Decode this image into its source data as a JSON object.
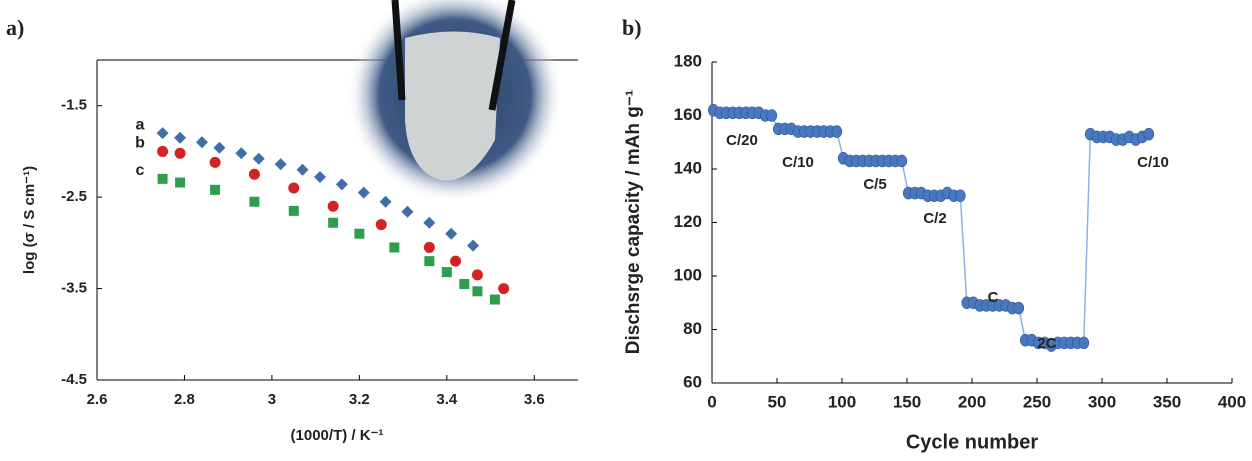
{
  "chart_data": [
    {
      "type": "scatter",
      "title": "a)",
      "xlabel": "(1000/T)  / K⁻¹",
      "ylabel": "log (σ / S cm⁻¹)",
      "xlim": [
        2.6,
        3.7
      ],
      "xticks": [
        2.6,
        2.8,
        3.0,
        3.2,
        3.4,
        3.6
      ],
      "ylim": [
        -4.5,
        -1
      ],
      "yticks": [
        -4.5,
        -3.5,
        -2.5,
        -1.5
      ],
      "series": [
        {
          "name": "a",
          "color": "#3f6fa8",
          "marker": "diamond",
          "x": [
            2.75,
            2.79,
            2.84,
            2.88,
            2.93,
            2.97,
            3.02,
            3.07,
            3.11,
            3.16,
            3.21,
            3.26,
            3.31,
            3.36,
            3.41,
            3.46
          ],
          "values": [
            -1.8,
            -1.85,
            -1.9,
            -1.96,
            -2.02,
            -2.08,
            -2.14,
            -2.2,
            -2.28,
            -2.36,
            -2.45,
            -2.55,
            -2.66,
            -2.78,
            -2.9,
            -3.03
          ]
        },
        {
          "name": "b",
          "color": "#d42222",
          "marker": "circle",
          "x": [
            2.75,
            2.79,
            2.87,
            2.96,
            3.05,
            3.14,
            3.25,
            3.36,
            3.42,
            3.47,
            3.53
          ],
          "values": [
            -2.0,
            -2.02,
            -2.12,
            -2.25,
            -2.4,
            -2.6,
            -2.8,
            -3.05,
            -3.2,
            -3.35,
            -3.5
          ]
        },
        {
          "name": "c",
          "color": "#2f9e4c",
          "marker": "square",
          "x": [
            2.75,
            2.79,
            2.87,
            2.96,
            3.05,
            3.14,
            3.2,
            3.28,
            3.36,
            3.4,
            3.44,
            3.47,
            3.51
          ],
          "values": [
            -2.3,
            -2.34,
            -2.42,
            -2.55,
            -2.65,
            -2.78,
            -2.9,
            -3.05,
            -3.2,
            -3.32,
            -3.45,
            -3.53,
            -3.62
          ]
        }
      ]
    },
    {
      "type": "line",
      "title": "b)",
      "xlabel": "Cycle number",
      "ylabel": "Dischsrge capacity / mAh g⁻¹",
      "xlim": [
        0,
        400
      ],
      "xticks": [
        0,
        50,
        100,
        150,
        200,
        250,
        300,
        350,
        400
      ],
      "ylim": [
        60,
        180
      ],
      "yticks": [
        60,
        80,
        100,
        120,
        140,
        160,
        180
      ],
      "color": "#4a78c0",
      "line_color": "#8fb2de",
      "x": [
        1,
        6,
        11,
        16,
        21,
        26,
        31,
        36,
        41,
        46,
        51,
        56,
        61,
        66,
        71,
        76,
        81,
        86,
        91,
        96,
        101,
        106,
        111,
        116,
        121,
        126,
        131,
        136,
        141,
        146,
        151,
        156,
        161,
        166,
        171,
        176,
        181,
        186,
        191,
        196,
        201,
        206,
        211,
        216,
        221,
        226,
        231,
        236,
        241,
        246,
        251,
        256,
        261,
        266,
        271,
        276,
        281,
        286,
        291,
        296,
        301,
        306,
        311,
        316,
        321,
        326,
        331,
        336
      ],
      "values": [
        162,
        161,
        161,
        161,
        161,
        161,
        161,
        161,
        160,
        160,
        155,
        155,
        155,
        154,
        154,
        154,
        154,
        154,
        154,
        154,
        144,
        143,
        143,
        143,
        143,
        143,
        143,
        143,
        143,
        143,
        131,
        131,
        131,
        130,
        130,
        130,
        131,
        130,
        130,
        90,
        90,
        89,
        89,
        89,
        89,
        89,
        88,
        88,
        76,
        76,
        75,
        75,
        74,
        75,
        75,
        75,
        75,
        75,
        153,
        152,
        152,
        152,
        151,
        151,
        152,
        151,
        152,
        153
      ],
      "annotations": [
        "C/20",
        "C/10",
        "C/5",
        "C/2",
        "C",
        "2C",
        "C/10"
      ]
    }
  ]
}
